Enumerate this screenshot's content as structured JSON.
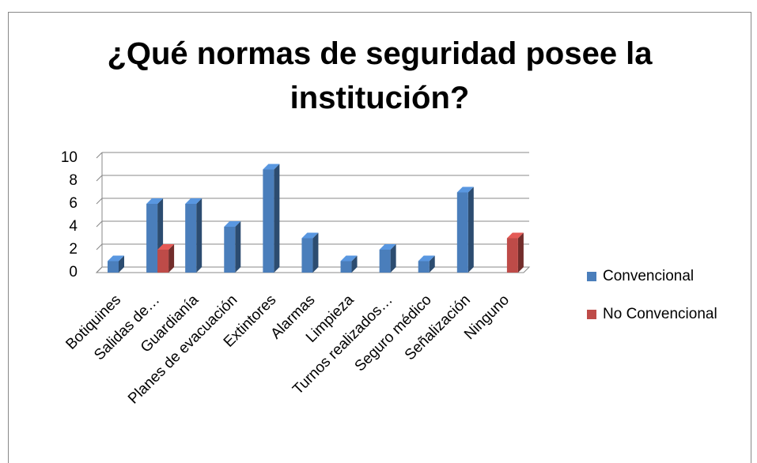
{
  "chart_data": {
    "type": "bar3d",
    "title": "¿Qué normas de seguridad posee la institución?",
    "categories": [
      "Botiquines",
      "Salidas de…",
      "Guardianía",
      "Planes de evacuación",
      "Extintores",
      "Alarmas",
      "Limpieza",
      "Turnos realizados…",
      "Seguro médico",
      "Señalización",
      "Ninguno"
    ],
    "series": [
      {
        "name": "Convencional",
        "color": "#4a7ebb",
        "values": [
          1,
          6,
          6,
          4,
          9,
          3,
          1,
          2,
          1,
          7,
          0
        ]
      },
      {
        "name": "No Convencional",
        "color": "#be4b48",
        "values": [
          0,
          2,
          0,
          0,
          0,
          0,
          0,
          0,
          0,
          0,
          3
        ]
      }
    ],
    "ylim": [
      0,
      10
    ],
    "yticks": [
      0,
      2,
      4,
      6,
      8,
      10
    ],
    "grid": true,
    "legend": "right"
  }
}
